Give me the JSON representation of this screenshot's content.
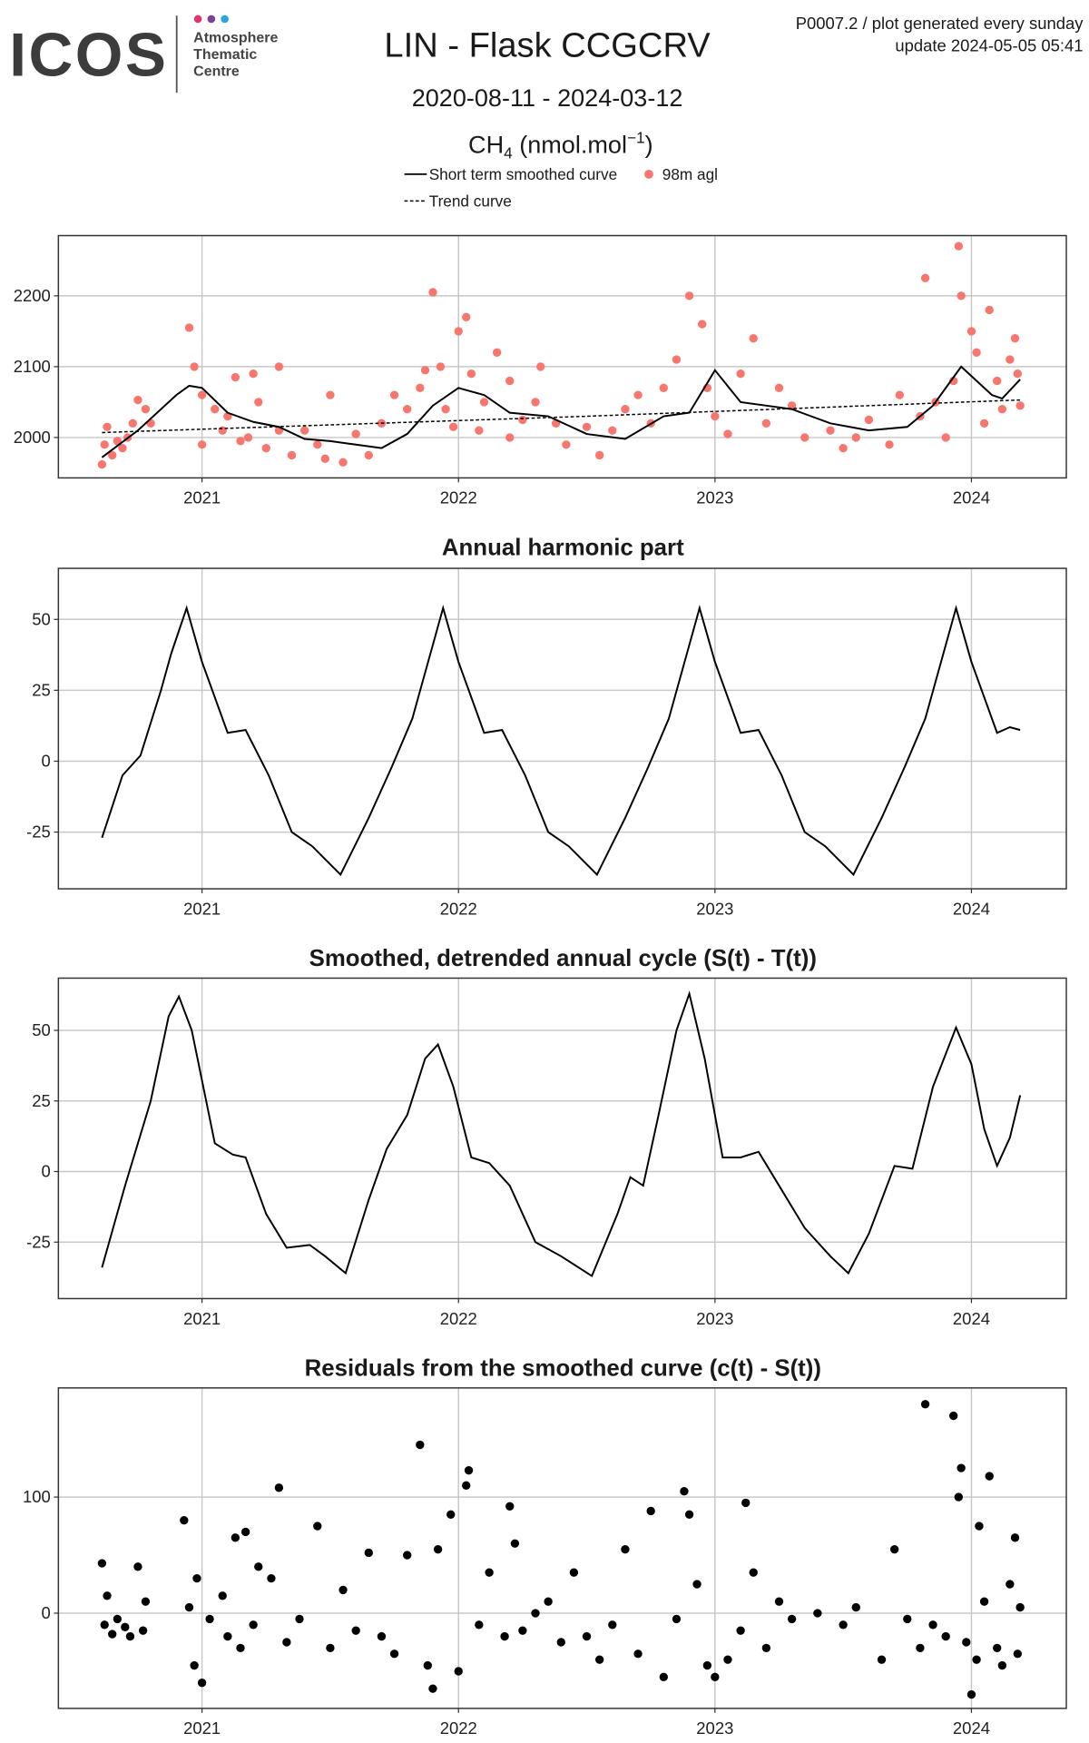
{
  "header": {
    "logo": "ICOS",
    "logo_sub": [
      "Atmosphere",
      "Thematic",
      "Centre"
    ],
    "code_line": "P0007.2 / plot generated every sunday",
    "update_line": "update  2024-05-05 05:41"
  },
  "chart_data": [
    {
      "type": "scatter",
      "title": "LIN - Flask CCGCRV",
      "subtitle": "2020-08-11 - 2024-03-12",
      "ylabel": {
        "text": "CH",
        "sub": "4",
        "unit": " (nmol.mol",
        "sup": "−1",
        "close": ")"
      },
      "xlim": [
        2020.44,
        2024.37
      ],
      "xticks": [
        2021,
        2022,
        2023,
        2024
      ],
      "ylim": [
        1943,
        2285
      ],
      "yticks": [
        2000,
        2100,
        2200
      ],
      "grid": true,
      "series": [
        {
          "name": "98m agl",
          "type": "scatter",
          "color": "#F8766D",
          "x": [
            2020.61,
            2020.62,
            2020.63,
            2020.65,
            2020.67,
            2020.69,
            2020.71,
            2020.73,
            2020.75,
            2020.78,
            2020.8,
            2020.95,
            2020.97,
            2021.0,
            2021.0,
            2021.05,
            2021.08,
            2021.1,
            2021.13,
            2021.15,
            2021.18,
            2021.2,
            2021.22,
            2021.25,
            2021.3,
            2021.3,
            2021.35,
            2021.4,
            2021.45,
            2021.48,
            2021.5,
            2021.55,
            2021.6,
            2021.65,
            2021.7,
            2021.75,
            2021.8,
            2021.85,
            2021.87,
            2021.9,
            2021.93,
            2021.95,
            2021.98,
            2022.0,
            2022.03,
            2022.05,
            2022.08,
            2022.1,
            2022.15,
            2022.2,
            2022.2,
            2022.25,
            2022.3,
            2022.32,
            2022.38,
            2022.42,
            2022.5,
            2022.55,
            2022.6,
            2022.65,
            2022.7,
            2022.75,
            2022.8,
            2022.85,
            2022.9,
            2022.95,
            2022.97,
            2023.0,
            2023.05,
            2023.1,
            2023.15,
            2023.2,
            2023.25,
            2023.3,
            2023.35,
            2023.45,
            2023.5,
            2023.55,
            2023.6,
            2023.68,
            2023.72,
            2023.8,
            2023.82,
            2023.86,
            2023.9,
            2023.93,
            2023.95,
            2023.96,
            2024.0,
            2024.02,
            2024.05,
            2024.07,
            2024.1,
            2024.12,
            2024.15,
            2024.17,
            2024.18,
            2024.19
          ],
          "values": [
            1962,
            1990,
            2015,
            1975,
            1995,
            1985,
            2000,
            2020,
            2053,
            2040,
            2020,
            2155,
            2100,
            2060,
            1990,
            2040,
            2010,
            2030,
            2085,
            1995,
            2000,
            2090,
            2050,
            1985,
            2010,
            2100,
            1975,
            2010,
            1990,
            1970,
            2060,
            1965,
            2005,
            1975,
            2020,
            2060,
            2040,
            2070,
            2095,
            2205,
            2100,
            2040,
            2015,
            2150,
            2170,
            2090,
            2010,
            2050,
            2120,
            2000,
            2080,
            2025,
            2050,
            2100,
            2020,
            1990,
            2015,
            1975,
            2010,
            2040,
            2060,
            2020,
            2070,
            2110,
            2200,
            2160,
            2070,
            2030,
            2005,
            2090,
            2140,
            2020,
            2070,
            2045,
            2000,
            2010,
            1985,
            2000,
            2025,
            1990,
            2060,
            2030,
            2225,
            2050,
            2000,
            2080,
            2270,
            2200,
            2150,
            2120,
            2020,
            2180,
            2080,
            2040,
            2110,
            2140,
            2090,
            2045
          ]
        },
        {
          "name": "Short term smoothed curve",
          "type": "line",
          "color": "#000000",
          "x": [
            2020.61,
            2020.75,
            2020.9,
            2020.95,
            2021.0,
            2021.1,
            2021.2,
            2021.3,
            2021.4,
            2021.5,
            2021.6,
            2021.7,
            2021.8,
            2021.9,
            2022.0,
            2022.1,
            2022.2,
            2022.35,
            2022.5,
            2022.65,
            2022.8,
            2022.9,
            2023.0,
            2023.1,
            2023.2,
            2023.3,
            2023.45,
            2023.6,
            2023.75,
            2023.85,
            2023.96,
            2024.08,
            2024.12,
            2024.19
          ],
          "values": [
            1972,
            2010,
            2060,
            2073,
            2070,
            2035,
            2022,
            2015,
            1998,
            1995,
            1990,
            1985,
            2005,
            2045,
            2070,
            2060,
            2035,
            2030,
            2005,
            1998,
            2030,
            2035,
            2095,
            2050,
            2045,
            2040,
            2020,
            2010,
            2015,
            2045,
            2100,
            2060,
            2055,
            2082
          ]
        },
        {
          "name": "Trend curve",
          "type": "line",
          "style": "dashed",
          "color": "#000000",
          "x": [
            2020.61,
            2022.5,
            2024.19
          ],
          "values": [
            2007,
            2030,
            2053
          ]
        }
      ]
    },
    {
      "type": "line",
      "title": "Annual harmonic part",
      "xlim": [
        2020.44,
        2024.37
      ],
      "xticks": [
        2021,
        2022,
        2023,
        2024
      ],
      "ylim": [
        -45,
        68
      ],
      "yticks": [
        -25,
        0,
        25,
        50
      ],
      "grid": true,
      "series": [
        {
          "color": "#000000",
          "x": [
            2020.61,
            2020.69,
            2020.76,
            2020.84,
            2020.88,
            2020.94,
            2021.0,
            2021.1,
            2021.17,
            2021.26,
            2021.35,
            2021.43,
            2021.54,
            2021.65,
            2021.74,
            2021.82,
            2021.86,
            2021.94,
            2022.0,
            2022.1,
            2022.17,
            2022.26,
            2022.35,
            2022.43,
            2022.54,
            2022.65,
            2022.74,
            2022.82,
            2022.86,
            2022.94,
            2023.0,
            2023.1,
            2023.17,
            2023.26,
            2023.35,
            2023.43,
            2023.54,
            2023.65,
            2023.74,
            2023.82,
            2023.86,
            2023.94,
            2024.0,
            2024.1,
            2024.15,
            2024.19
          ],
          "values": [
            -27,
            -5,
            2,
            25,
            38,
            54,
            35,
            10,
            11,
            -5,
            -25,
            -30,
            -40,
            -20,
            -2,
            15,
            28,
            54,
            35,
            10,
            11,
            -5,
            -25,
            -30,
            -40,
            -20,
            -2,
            15,
            28,
            54,
            35,
            10,
            11,
            -5,
            -25,
            -30,
            -40,
            -20,
            -2,
            15,
            28,
            54,
            35,
            10,
            12,
            11
          ]
        }
      ]
    },
    {
      "type": "line",
      "title": "Smoothed, detrended annual cycle (S(t) - T(t))",
      "xlim": [
        2020.44,
        2024.37
      ],
      "xticks": [
        2021,
        2022,
        2023,
        2024
      ],
      "ylim": [
        -45,
        68.5
      ],
      "yticks": [
        -25,
        0,
        25,
        50
      ],
      "grid": true,
      "series": [
        {
          "color": "#000000",
          "x": [
            2020.61,
            2020.7,
            2020.8,
            2020.87,
            2020.91,
            2020.96,
            2021.05,
            2021.12,
            2021.17,
            2021.25,
            2021.33,
            2021.42,
            2021.48,
            2021.56,
            2021.65,
            2021.72,
            2021.8,
            2021.87,
            2021.92,
            2021.98,
            2022.05,
            2022.12,
            2022.2,
            2022.3,
            2022.4,
            2022.52,
            2022.62,
            2022.67,
            2022.72,
            2022.78,
            2022.85,
            2022.9,
            2022.96,
            2023.03,
            2023.1,
            2023.17,
            2023.25,
            2023.35,
            2023.45,
            2023.52,
            2023.6,
            2023.7,
            2023.77,
            2023.85,
            2023.94,
            2024.0,
            2024.05,
            2024.1,
            2024.15,
            2024.19
          ],
          "values": [
            -34,
            -5,
            25,
            55,
            62,
            50,
            10,
            6,
            5,
            -15,
            -27,
            -26,
            -30,
            -36,
            -10,
            8,
            20,
            40,
            45,
            30,
            5,
            3,
            -5,
            -25,
            -30,
            -37,
            -15,
            -2,
            -5,
            20,
            50,
            63,
            40,
            5,
            5,
            7,
            -5,
            -20,
            -30,
            -36,
            -22,
            2,
            1,
            30,
            51,
            38,
            15,
            2,
            12,
            27
          ]
        }
      ]
    },
    {
      "type": "scatter",
      "title": "Residuals from the smoothed curve (c(t) - S(t))",
      "xlim": [
        2020.44,
        2024.37
      ],
      "xticks": [
        2021,
        2022,
        2023,
        2024
      ],
      "ylim": [
        -82,
        194
      ],
      "yticks": [
        0,
        100
      ],
      "grid": true,
      "series": [
        {
          "color": "#000000",
          "x": [
            2020.61,
            2020.62,
            2020.63,
            2020.65,
            2020.67,
            2020.7,
            2020.72,
            2020.75,
            2020.77,
            2020.78,
            2020.93,
            2020.95,
            2020.97,
            2020.98,
            2021.0,
            2021.03,
            2021.08,
            2021.1,
            2021.13,
            2021.15,
            2021.17,
            2021.2,
            2021.22,
            2021.27,
            2021.3,
            2021.33,
            2021.38,
            2021.45,
            2021.5,
            2021.55,
            2021.6,
            2021.65,
            2021.7,
            2021.75,
            2021.8,
            2021.85,
            2021.88,
            2021.9,
            2021.92,
            2021.97,
            2022.0,
            2022.03,
            2022.04,
            2022.08,
            2022.12,
            2022.18,
            2022.2,
            2022.22,
            2022.25,
            2022.3,
            2022.35,
            2022.4,
            2022.45,
            2022.5,
            2022.55,
            2022.6,
            2022.65,
            2022.7,
            2022.75,
            2022.8,
            2022.85,
            2022.88,
            2022.9,
            2022.93,
            2022.97,
            2023.0,
            2023.05,
            2023.1,
            2023.12,
            2023.15,
            2023.2,
            2023.25,
            2023.3,
            2023.4,
            2023.5,
            2023.55,
            2023.65,
            2023.7,
            2023.75,
            2023.8,
            2023.82,
            2023.85,
            2023.9,
            2023.93,
            2023.95,
            2023.96,
            2023.98,
            2024.0,
            2024.02,
            2024.03,
            2024.05,
            2024.07,
            2024.1,
            2024.12,
            2024.15,
            2024.17,
            2024.18,
            2024.19
          ],
          "values": [
            43,
            -10,
            15,
            -18,
            -5,
            -12,
            -20,
            40,
            -15,
            10,
            80,
            5,
            -45,
            30,
            -60,
            -5,
            15,
            -20,
            65,
            -30,
            70,
            -10,
            40,
            30,
            108,
            -25,
            -5,
            75,
            -30,
            20,
            -15,
            52,
            -20,
            -35,
            50,
            145,
            -45,
            -65,
            55,
            85,
            -50,
            110,
            123,
            -10,
            35,
            -20,
            92,
            60,
            -15,
            0,
            10,
            -25,
            35,
            -20,
            -40,
            -10,
            55,
            -35,
            88,
            -55,
            -5,
            105,
            85,
            25,
            -45,
            -55,
            -40,
            -15,
            95,
            35,
            -30,
            10,
            -5,
            0,
            -10,
            5,
            -40,
            55,
            -5,
            -30,
            180,
            -10,
            -20,
            170,
            100,
            125,
            -25,
            -70,
            -40,
            75,
            10,
            118,
            -30,
            -45,
            25,
            65,
            -35,
            5
          ]
        }
      ]
    }
  ]
}
